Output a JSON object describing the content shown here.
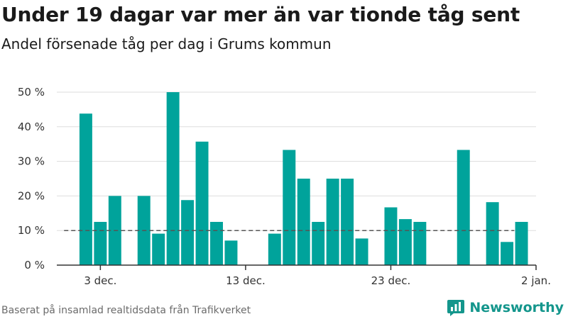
{
  "title": "Under 19 dagar var mer än var tionde tåg sent",
  "subtitle": "Andel försenade tåg per dag i Grums kommun",
  "source": "Baserat på insamlad realtidsdata från Trafikverket",
  "brand": {
    "name": "Newsworthy",
    "icon": "newsworthy-logo-icon",
    "color": "#14968c"
  },
  "colors": {
    "bar": "#00a39b",
    "reference": "#555555",
    "grid": "#dddddd",
    "axis": "#333333"
  },
  "chart_data": {
    "type": "bar",
    "title": "Under 19 dagar var mer än var tionde tåg sent",
    "subtitle": "Andel försenade tåg per dag i Grums kommun",
    "xlabel": "",
    "ylabel": "",
    "ylim": [
      0,
      50
    ],
    "yticks": [
      0,
      10,
      20,
      30,
      40,
      50
    ],
    "ytick_labels": [
      "0 %",
      "10 %",
      "20 %",
      "30 %",
      "40 %",
      "50 %"
    ],
    "xticks": [
      {
        "date": "2018-12-03",
        "label": "3 dec."
      },
      {
        "date": "2018-12-13",
        "label": "13 dec."
      },
      {
        "date": "2018-12-23",
        "label": "23 dec."
      },
      {
        "date": "2019-01-02",
        "label": "2 jan."
      }
    ],
    "x_range": [
      "2018-11-30",
      "2019-01-02"
    ],
    "grid": true,
    "reference_line": {
      "value": 10,
      "style": "dashed",
      "x_range": [
        "2018-12-01",
        "2018-12-31"
      ]
    },
    "data": [
      {
        "date": "2018-12-02",
        "value": 43.8
      },
      {
        "date": "2018-12-03",
        "value": 12.5
      },
      {
        "date": "2018-12-04",
        "value": 20.0
      },
      {
        "date": "2018-12-06",
        "value": 20.0
      },
      {
        "date": "2018-12-07",
        "value": 9.1
      },
      {
        "date": "2018-12-08",
        "value": 50.0
      },
      {
        "date": "2018-12-09",
        "value": 18.8
      },
      {
        "date": "2018-12-10",
        "value": 35.7
      },
      {
        "date": "2018-12-11",
        "value": 12.5
      },
      {
        "date": "2018-12-12",
        "value": 7.1
      },
      {
        "date": "2018-12-15",
        "value": 9.1
      },
      {
        "date": "2018-12-16",
        "value": 33.3
      },
      {
        "date": "2018-12-17",
        "value": 25.0
      },
      {
        "date": "2018-12-18",
        "value": 12.5
      },
      {
        "date": "2018-12-19",
        "value": 25.0
      },
      {
        "date": "2018-12-20",
        "value": 25.0
      },
      {
        "date": "2018-12-21",
        "value": 7.7
      },
      {
        "date": "2018-12-23",
        "value": 16.7
      },
      {
        "date": "2018-12-24",
        "value": 13.3
      },
      {
        "date": "2018-12-25",
        "value": 12.5
      },
      {
        "date": "2018-12-28",
        "value": 33.3
      },
      {
        "date": "2018-12-30",
        "value": 18.2
      },
      {
        "date": "2018-12-31",
        "value": 6.7
      },
      {
        "date": "2019-01-01",
        "value": 12.5
      }
    ]
  }
}
